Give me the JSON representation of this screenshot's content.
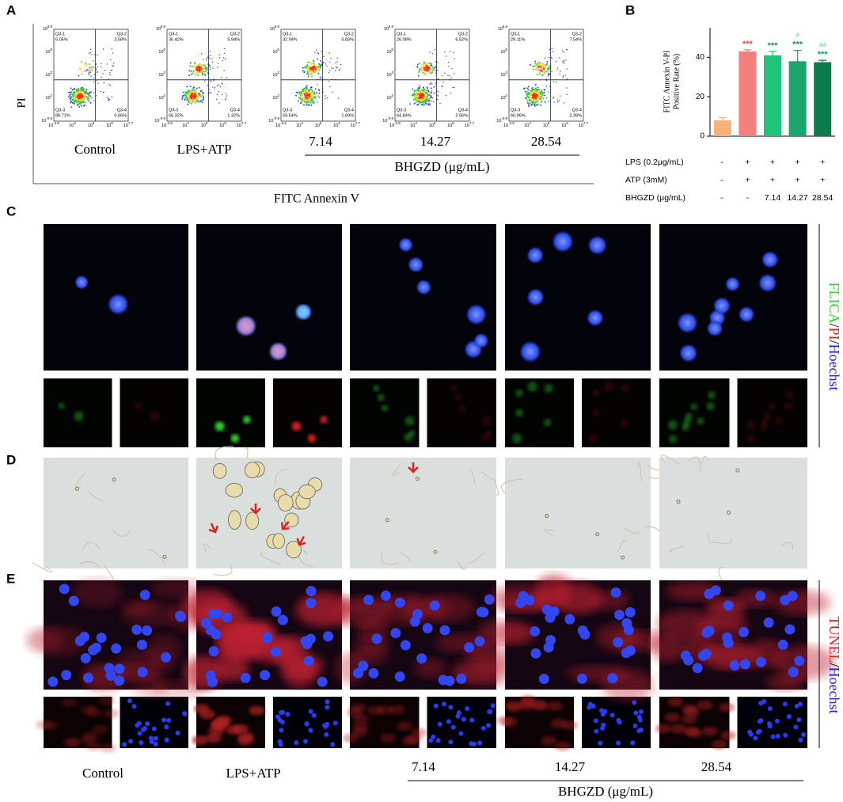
{
  "panel_labels": [
    "A",
    "B",
    "C",
    "D",
    "E"
  ],
  "flow": {
    "y_label": "PI",
    "x_label": "FITC Annexin V",
    "xticks": [
      {
        "base": "10",
        "exp": "-2.8"
      },
      {
        "base": "10",
        "exp": "4"
      },
      {
        "base": "10",
        "exp": "5"
      },
      {
        "base": "10",
        "exp": "6"
      },
      {
        "base": "10",
        "exp": "7.7"
      }
    ],
    "yticks": [
      {
        "base": "10",
        "exp": "-0.9"
      },
      {
        "base": "10",
        "exp": "2"
      },
      {
        "base": "10",
        "exp": "3"
      },
      {
        "base": "10",
        "exp": "5"
      },
      {
        "base": "10",
        "exp": "6.9"
      }
    ],
    "quadrant_names": [
      "Q3-1",
      "Q3-2",
      "Q3-3",
      "Q3-4"
    ],
    "plots": [
      {
        "quadrants": [
          "6.05%",
          "3.58%",
          "89.71%",
          "0.66%"
        ]
      },
      {
        "quadrants": [
          "36.42%",
          "5.94%",
          "56.32%",
          "1.32%"
        ]
      },
      {
        "quadrants": [
          "32.94%",
          "5.83%",
          "59.54%",
          "1.69%"
        ]
      },
      {
        "quadrants": [
          "26.08%",
          "6.52%",
          "64.84%",
          "2.56%"
        ]
      },
      {
        "quadrants": [
          "29.11%",
          "7.54%",
          "60.96%",
          "2.39%"
        ]
      }
    ]
  },
  "groups": {
    "labels": [
      "Control",
      "LPS+ATP",
      "7.14",
      "14.27",
      "28.54"
    ],
    "treatment": "BHGZD (μg/mL)"
  },
  "chart_data": {
    "type": "bar",
    "y_label": [
      "FITC Annexin V-PI",
      "Positive Rate (%)"
    ],
    "values": [
      8,
      43,
      41,
      38,
      37.5
    ],
    "errors": [
      1.5,
      0.8,
      2,
      5.5,
      1
    ],
    "colors": [
      "#f5b27a",
      "#f47f7f",
      "#1fc47a",
      "#1aa56e",
      "#0b7a4f"
    ],
    "significance": [
      null,
      "***",
      "***",
      "***",
      "***"
    ],
    "significance_colors": [
      null,
      "#e8484c",
      "#0f9a5d",
      "#0f9a5d",
      "#0f9a5d"
    ],
    "significance2": [
      null,
      null,
      null,
      "#",
      "##"
    ],
    "significance2_color": "#6ccfa0",
    "ylim": [
      0,
      55
    ],
    "yticks": [
      0,
      20,
      40
    ],
    "conditions": [
      {
        "label": "LPS (0.2μg/mL)",
        "values": [
          "-",
          "+",
          "+",
          "+",
          "+"
        ]
      },
      {
        "label": "ATP (3mM)",
        "values": [
          "-",
          "+",
          "+",
          "+",
          "+"
        ]
      },
      {
        "label": "BHGZD (μg/mL)",
        "values": [
          "-",
          "-",
          "7.14",
          "14.27",
          "28.54"
        ]
      }
    ]
  },
  "stains": {
    "C": [
      {
        "text": "FLICA",
        "color": "#2fd62f"
      },
      {
        "text": "/",
        "color": "#000000"
      },
      {
        "text": "PI",
        "color": "#e02020"
      },
      {
        "text": "/",
        "color": "#000000"
      },
      {
        "text": "Hoechst",
        "color": "#2020e0"
      }
    ],
    "E": [
      {
        "text": "TUNEL",
        "color": "#e02020"
      },
      {
        "text": "/",
        "color": "#000000"
      },
      {
        "text": "Hoechst",
        "color": "#2020e0"
      }
    ]
  }
}
